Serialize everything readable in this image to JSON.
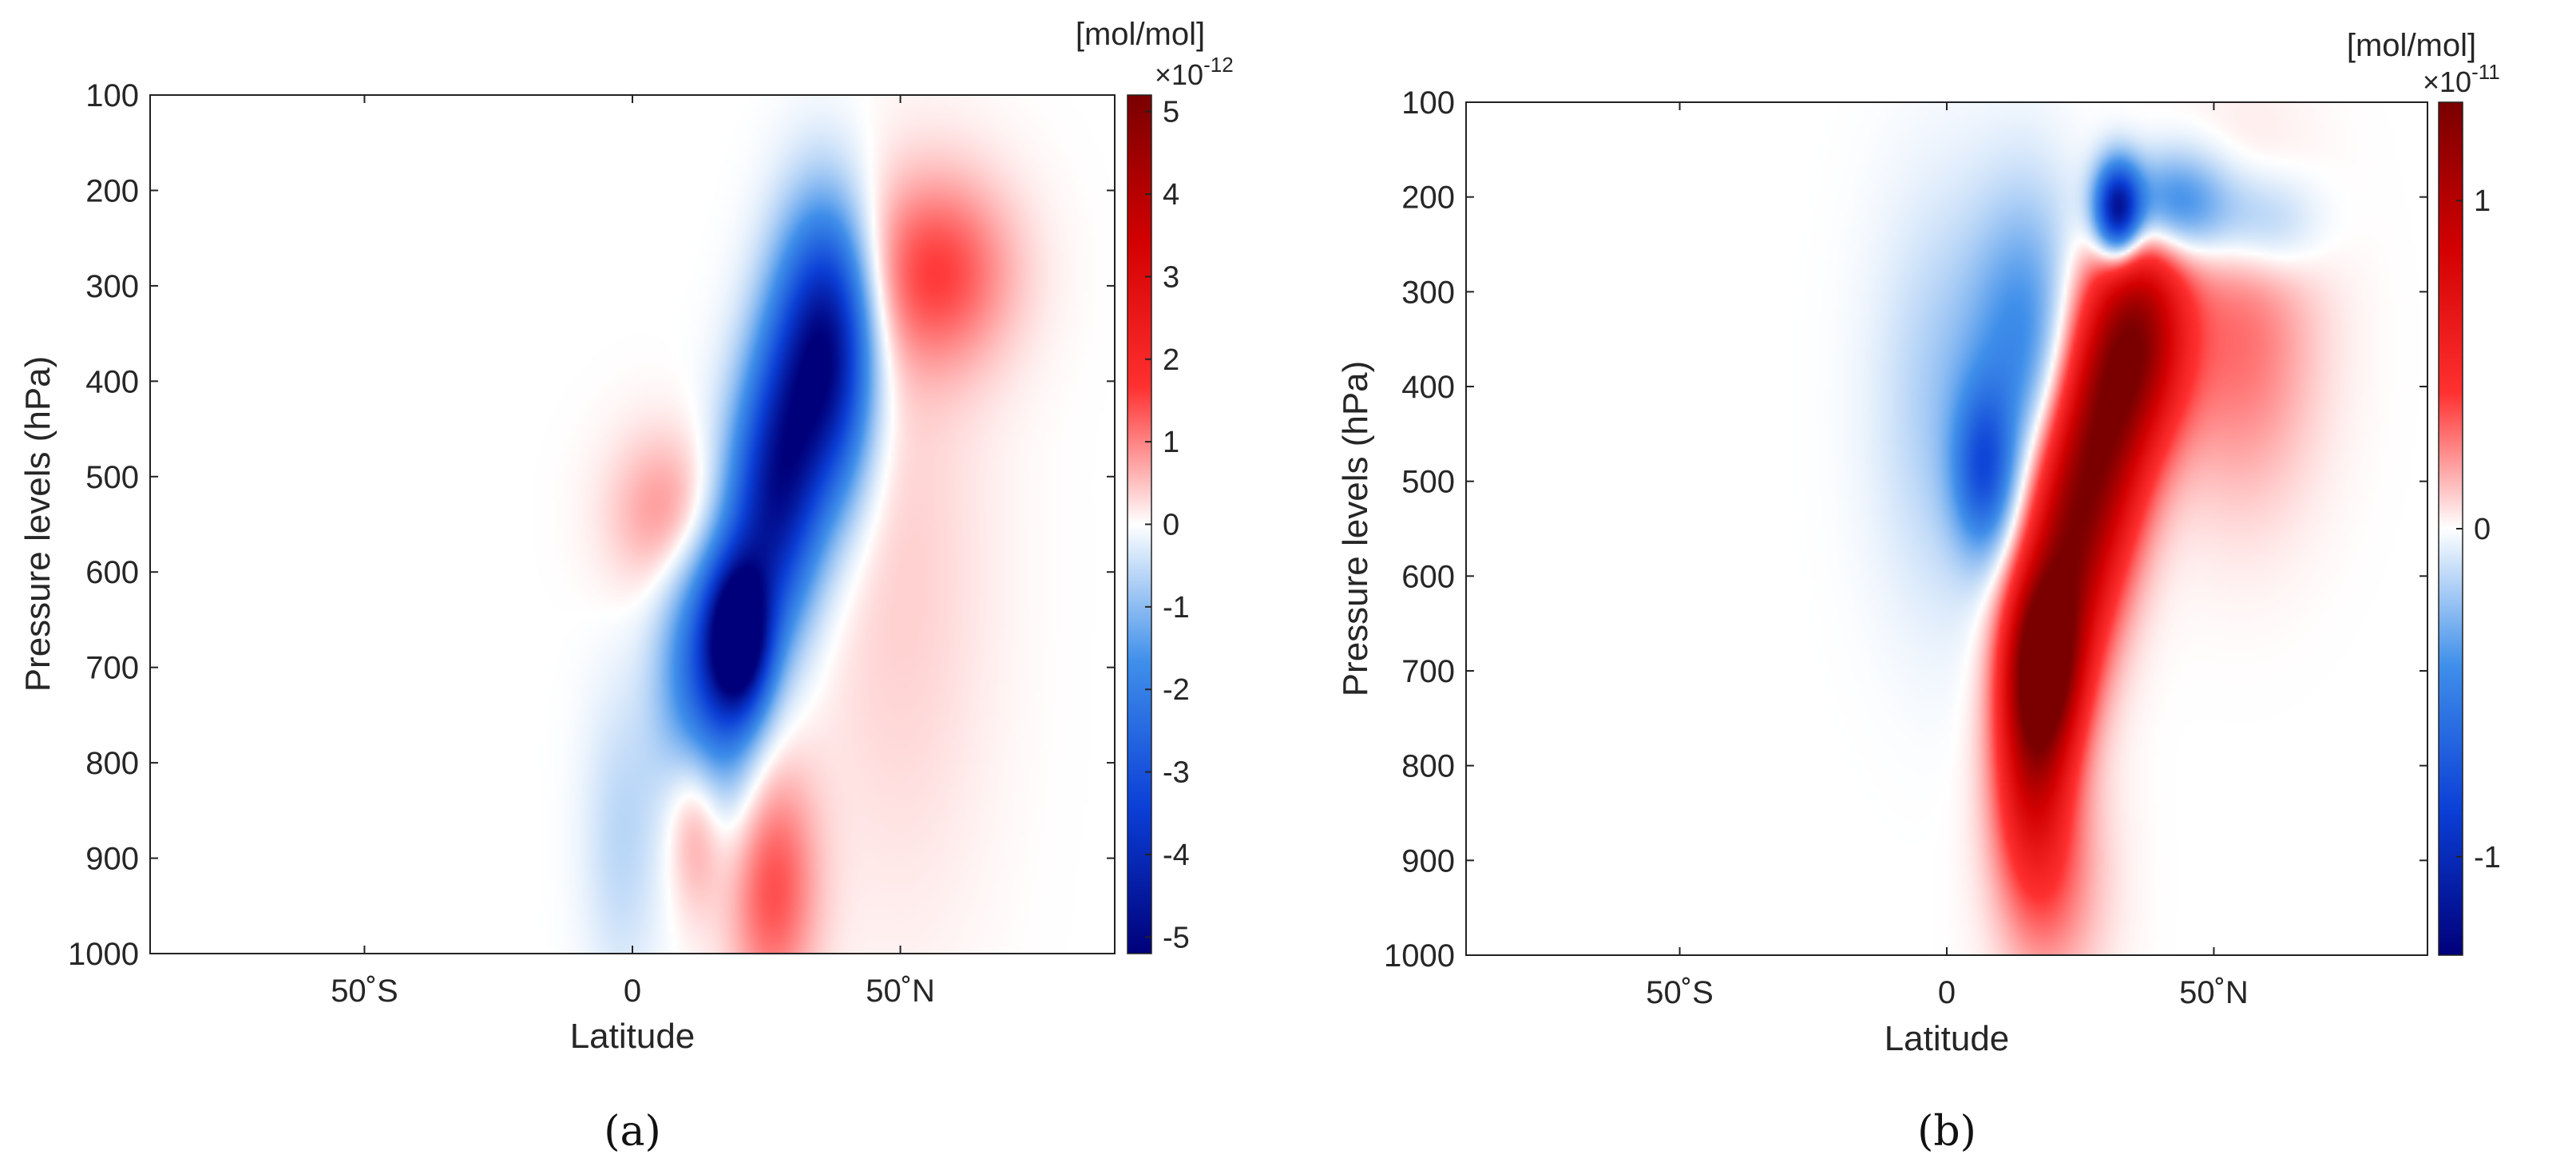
{
  "chart_data": [
    {
      "type": "heatmap",
      "panel_label": "(a)",
      "xlabel": "Latitude",
      "ylabel": "Pressure levels (hPa)",
      "x_tick_labels": [
        "50˚S",
        "0",
        "50˚N"
      ],
      "x_tick_values": [
        -50,
        0,
        50
      ],
      "xlim": [
        -90,
        90
      ],
      "y_tick_labels": [
        "100",
        "200",
        "300",
        "400",
        "500",
        "600",
        "700",
        "800",
        "900",
        "1000"
      ],
      "y_tick_values": [
        100,
        200,
        300,
        400,
        500,
        600,
        700,
        800,
        900,
        1000
      ],
      "ylim": [
        100,
        1000
      ],
      "y_reversed": true,
      "colorbar": {
        "unit_label": "[mol/mol]",
        "multiplier_base": "×10",
        "multiplier_exponent": "-12",
        "range": [
          -5.2,
          5.2
        ],
        "tick_labels": [
          "5",
          "4",
          "3",
          "2",
          "1",
          "0",
          "-1",
          "-2",
          "-3",
          "-4",
          "-5"
        ],
        "tick_values": [
          5,
          4,
          3,
          2,
          1,
          0,
          -1,
          -2,
          -3,
          -4,
          -5
        ],
        "colormap": [
          "#00007a",
          "#0b3fd6",
          "#3f8fea",
          "#ffffff",
          "#ff3030",
          "#d20000",
          "#7a0000"
        ]
      },
      "features": [
        {
          "lat": 20,
          "p": 670,
          "value": -5.0,
          "sigma_lat": 4,
          "sigma_p": 55
        },
        {
          "lat": 14,
          "p": 720,
          "value": -3.0,
          "sigma_lat": 6,
          "sigma_p": 110
        },
        {
          "lat": 25,
          "p": 560,
          "value": -3.2,
          "sigma_lat": 6,
          "sigma_p": 90
        },
        {
          "lat": 30,
          "p": 450,
          "value": -3.2,
          "sigma_lat": 6,
          "sigma_p": 90
        },
        {
          "lat": 35,
          "p": 330,
          "value": -2.8,
          "sigma_lat": 6,
          "sigma_p": 90
        },
        {
          "lat": 39,
          "p": 390,
          "value": -2.0,
          "sigma_lat": 5,
          "sigma_p": 100
        },
        {
          "lat": 57,
          "p": 285,
          "value": 1.5,
          "sigma_lat": 10,
          "sigma_p": 70
        },
        {
          "lat": 8,
          "p": 540,
          "value": 1.1,
          "sigma_lat": 8,
          "sigma_p": 60
        },
        {
          "lat": 26,
          "p": 930,
          "value": 1.5,
          "sigma_lat": 6,
          "sigma_p": 90
        },
        {
          "lat": 12,
          "p": 850,
          "value": 1.6,
          "sigma_lat": 4,
          "sigma_p": 70
        },
        {
          "lat": -2,
          "p": 880,
          "value": -0.6,
          "sigma_lat": 5,
          "sigma_p": 110
        },
        {
          "lat": 50,
          "p": 600,
          "value": 0.4,
          "sigma_lat": 12,
          "sigma_p": 250
        }
      ]
    },
    {
      "type": "heatmap",
      "panel_label": "(b)",
      "xlabel": "Latitude",
      "ylabel": "Pressure levels (hPa)",
      "x_tick_labels": [
        "50˚S",
        "0",
        "50˚N"
      ],
      "x_tick_values": [
        -50,
        0,
        50
      ],
      "xlim": [
        -90,
        90
      ],
      "y_tick_labels": [
        "100",
        "200",
        "300",
        "400",
        "500",
        "600",
        "700",
        "800",
        "900",
        "1000"
      ],
      "y_tick_values": [
        100,
        200,
        300,
        400,
        500,
        600,
        700,
        800,
        900,
        1000
      ],
      "ylim": [
        100,
        1000
      ],
      "y_reversed": true,
      "colorbar": {
        "unit_label": "[mol/mol]",
        "multiplier_base": "×10",
        "multiplier_exponent": "-11",
        "range": [
          -1.3,
          1.3
        ],
        "tick_labels": [
          "1",
          "0",
          "-1"
        ],
        "tick_values": [
          1,
          0,
          -1
        ],
        "colormap": [
          "#00007a",
          "#0b3fd6",
          "#3f8fea",
          "#ffffff",
          "#ff3030",
          "#d20000",
          "#7a0000"
        ]
      },
      "features": [
        {
          "lat": 18,
          "p": 690,
          "value": 1.25,
          "sigma_lat": 5,
          "sigma_p": 70
        },
        {
          "lat": 23,
          "p": 560,
          "value": 1.0,
          "sigma_lat": 6,
          "sigma_p": 100
        },
        {
          "lat": 30,
          "p": 430,
          "value": 0.95,
          "sigma_lat": 6,
          "sigma_p": 100
        },
        {
          "lat": 37,
          "p": 340,
          "value": 0.85,
          "sigma_lat": 6,
          "sigma_p": 80
        },
        {
          "lat": 16,
          "p": 800,
          "value": 0.7,
          "sigma_lat": 5,
          "sigma_p": 90
        },
        {
          "lat": 20,
          "p": 920,
          "value": 0.25,
          "sigma_lat": 7,
          "sigma_p": 90
        },
        {
          "lat": 55,
          "p": 350,
          "value": 0.3,
          "sigma_lat": 10,
          "sigma_p": 120
        },
        {
          "lat": 32,
          "p": 215,
          "value": -1.15,
          "sigma_lat": 3,
          "sigma_p": 35
        },
        {
          "lat": 42,
          "p": 210,
          "value": -0.6,
          "sigma_lat": 8,
          "sigma_p": 40
        },
        {
          "lat": 60,
          "p": 230,
          "value": -0.25,
          "sigma_lat": 7,
          "sigma_p": 40
        },
        {
          "lat": 7,
          "p": 490,
          "value": -0.6,
          "sigma_lat": 4,
          "sigma_p": 60
        },
        {
          "lat": 15,
          "p": 360,
          "value": -0.45,
          "sigma_lat": 7,
          "sigma_p": 110
        },
        {
          "lat": 0,
          "p": 420,
          "value": -0.2,
          "sigma_lat": 9,
          "sigma_p": 150
        }
      ]
    }
  ]
}
